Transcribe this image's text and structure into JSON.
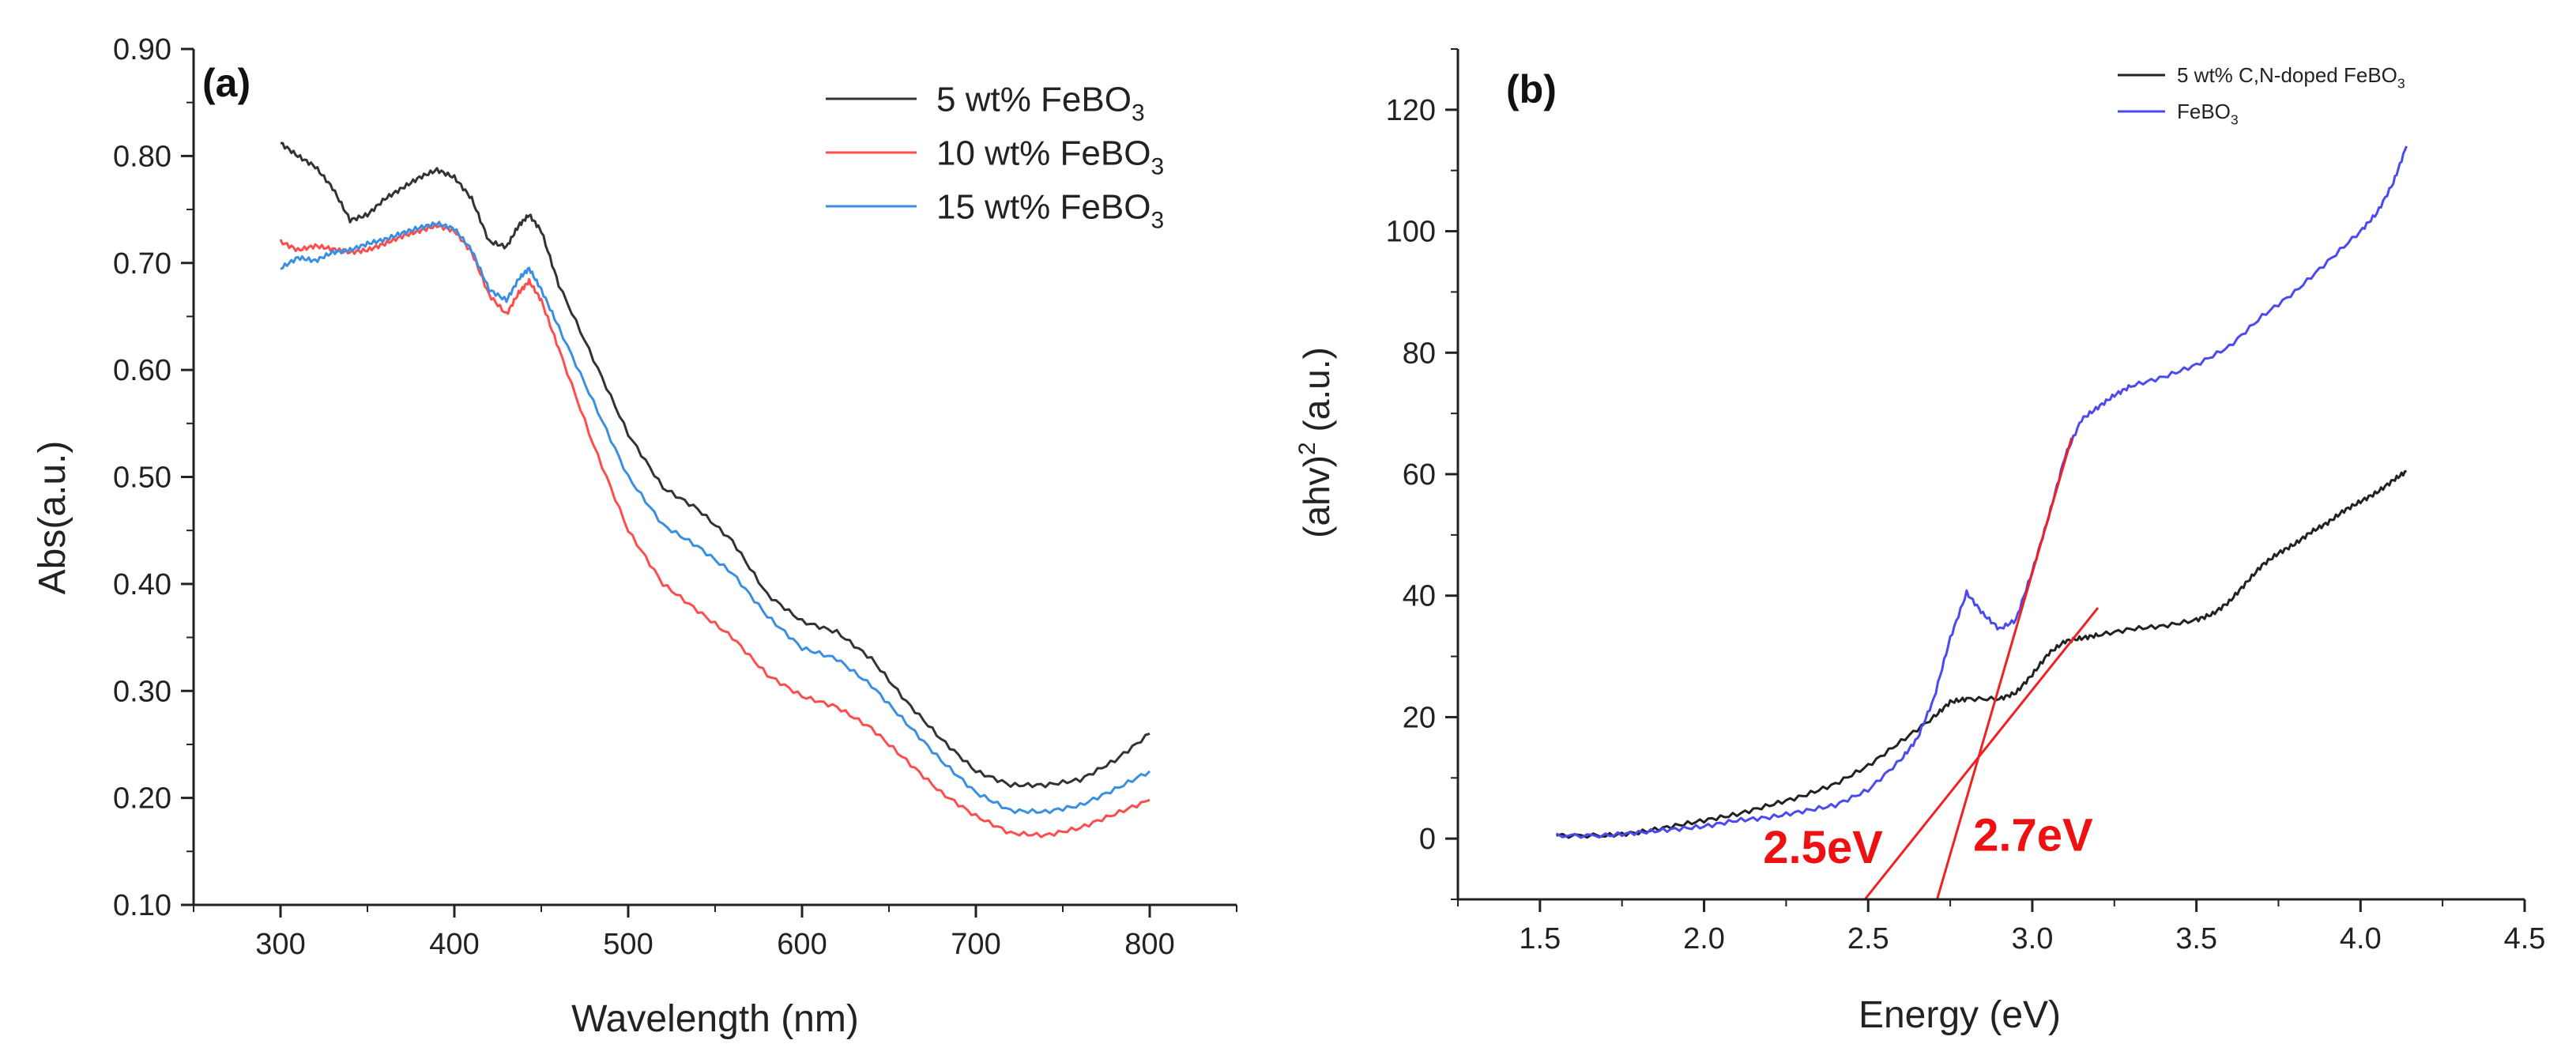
{
  "chart_data": [
    {
      "id": "a",
      "type": "line",
      "panel_label": "(a)",
      "xlabel": "Wavelength (nm)",
      "ylabel": "Abs(a.u.)",
      "xlim": [
        250,
        850
      ],
      "ylim": [
        0.1,
        0.9
      ],
      "xticks": [
        300,
        400,
        500,
        600,
        700,
        800
      ],
      "yticks": [
        0.1,
        0.2,
        0.3,
        0.4,
        0.5,
        0.6,
        0.7,
        0.8,
        0.9
      ],
      "x_minor_step": 50,
      "y_minor_step": 0.05,
      "legend_position": "top-right",
      "series": [
        {
          "name_main": "5 wt% FeBO",
          "name_sub": "3",
          "color": "#333333",
          "points": [
            [
              300,
              0.812
            ],
            [
              310,
              0.8
            ],
            [
              320,
              0.79
            ],
            [
              330,
              0.77
            ],
            [
              340,
              0.74
            ],
            [
              350,
              0.745
            ],
            [
              360,
              0.76
            ],
            [
              370,
              0.77
            ],
            [
              380,
              0.78
            ],
            [
              390,
              0.787
            ],
            [
              400,
              0.78
            ],
            [
              410,
              0.76
            ],
            [
              420,
              0.72
            ],
            [
              430,
              0.715
            ],
            [
              437,
              0.735
            ],
            [
              443,
              0.745
            ],
            [
              450,
              0.73
            ],
            [
              460,
              0.68
            ],
            [
              480,
              0.61
            ],
            [
              500,
              0.54
            ],
            [
              520,
              0.49
            ],
            [
              540,
              0.47
            ],
            [
              560,
              0.44
            ],
            [
              580,
              0.39
            ],
            [
              600,
              0.365
            ],
            [
              620,
              0.355
            ],
            [
              640,
              0.33
            ],
            [
              660,
              0.29
            ],
            [
              680,
              0.255
            ],
            [
              700,
              0.225
            ],
            [
              720,
              0.212
            ],
            [
              740,
              0.212
            ],
            [
              760,
              0.217
            ],
            [
              780,
              0.235
            ],
            [
              800,
              0.26
            ]
          ]
        },
        {
          "name_main": "10 wt% FeBO",
          "name_sub": "3",
          "color": "#ff4d4d",
          "points": [
            [
              300,
              0.72
            ],
            [
              310,
              0.712
            ],
            [
              320,
              0.716
            ],
            [
              330,
              0.713
            ],
            [
              340,
              0.71
            ],
            [
              350,
              0.712
            ],
            [
              360,
              0.718
            ],
            [
              370,
              0.725
            ],
            [
              380,
              0.73
            ],
            [
              390,
              0.735
            ],
            [
              400,
              0.73
            ],
            [
              410,
              0.71
            ],
            [
              420,
              0.67
            ],
            [
              430,
              0.652
            ],
            [
              437,
              0.672
            ],
            [
              443,
              0.683
            ],
            [
              450,
              0.665
            ],
            [
              460,
              0.62
            ],
            [
              480,
              0.53
            ],
            [
              500,
              0.45
            ],
            [
              520,
              0.4
            ],
            [
              540,
              0.375
            ],
            [
              560,
              0.35
            ],
            [
              580,
              0.315
            ],
            [
              600,
              0.295
            ],
            [
              620,
              0.285
            ],
            [
              640,
              0.265
            ],
            [
              660,
              0.235
            ],
            [
              680,
              0.205
            ],
            [
              700,
              0.183
            ],
            [
              720,
              0.167
            ],
            [
              740,
              0.165
            ],
            [
              760,
              0.172
            ],
            [
              780,
              0.185
            ],
            [
              800,
              0.198
            ]
          ]
        },
        {
          "name_main": "15 wt% FeBO",
          "name_sub": "3",
          "color": "#3a8fe0",
          "points": [
            [
              300,
              0.695
            ],
            [
              310,
              0.705
            ],
            [
              320,
              0.702
            ],
            [
              330,
              0.71
            ],
            [
              340,
              0.712
            ],
            [
              350,
              0.718
            ],
            [
              360,
              0.722
            ],
            [
              370,
              0.728
            ],
            [
              380,
              0.733
            ],
            [
              390,
              0.737
            ],
            [
              400,
              0.732
            ],
            [
              410,
              0.712
            ],
            [
              420,
              0.675
            ],
            [
              430,
              0.665
            ],
            [
              437,
              0.685
            ],
            [
              443,
              0.695
            ],
            [
              450,
              0.675
            ],
            [
              460,
              0.64
            ],
            [
              480,
              0.57
            ],
            [
              500,
              0.5
            ],
            [
              520,
              0.455
            ],
            [
              540,
              0.435
            ],
            [
              560,
              0.41
            ],
            [
              580,
              0.37
            ],
            [
              600,
              0.34
            ],
            [
              620,
              0.33
            ],
            [
              640,
              0.305
            ],
            [
              660,
              0.27
            ],
            [
              680,
              0.235
            ],
            [
              700,
              0.205
            ],
            [
              720,
              0.188
            ],
            [
              740,
              0.187
            ],
            [
              760,
              0.193
            ],
            [
              780,
              0.208
            ],
            [
              800,
              0.225
            ]
          ]
        }
      ]
    },
    {
      "id": "b",
      "type": "line",
      "panel_label": "(b)",
      "xlabel": "Energy (eV)",
      "ylabel_main": "(ahv)",
      "ylabel_sup": "2",
      "ylabel_tail": " (a.u.)",
      "xlim": [
        1.25,
        4.5
      ],
      "ylim": [
        -10,
        130
      ],
      "xticks": [
        1.5,
        2.0,
        2.5,
        3.0,
        3.5,
        4.0,
        4.5
      ],
      "yticks": [
        0,
        20,
        40,
        60,
        80,
        100,
        120
      ],
      "x_minor_step": 0.25,
      "y_minor_step": 10,
      "legend_position": "top-right",
      "series": [
        {
          "name_main": "5 wt% C,N-doped FeBO",
          "name_sub": "3",
          "color": "#222222",
          "points": [
            [
              1.55,
              0.5
            ],
            [
              1.7,
              0.5
            ],
            [
              1.8,
              1.0
            ],
            [
              1.9,
              2.0
            ],
            [
              2.0,
              3.0
            ],
            [
              2.1,
              4.0
            ],
            [
              2.2,
              5.5
            ],
            [
              2.3,
              7.0
            ],
            [
              2.4,
              9.0
            ],
            [
              2.5,
              12.0
            ],
            [
              2.6,
              16.0
            ],
            [
              2.7,
              20.0
            ],
            [
              2.75,
              22.5
            ],
            [
              2.8,
              23.0
            ],
            [
              2.9,
              23.0
            ],
            [
              2.95,
              24.0
            ],
            [
              3.0,
              27.0
            ],
            [
              3.05,
              30.5
            ],
            [
              3.1,
              32.5
            ],
            [
              3.15,
              33.0
            ],
            [
              3.2,
              33.5
            ],
            [
              3.3,
              34.5
            ],
            [
              3.4,
              35.0
            ],
            [
              3.5,
              36.0
            ],
            [
              3.55,
              37.0
            ],
            [
              3.6,
              39.0
            ],
            [
              3.65,
              42.0
            ],
            [
              3.7,
              45.0
            ],
            [
              3.75,
              47.0
            ],
            [
              3.8,
              48.5
            ],
            [
              3.85,
              50.5
            ],
            [
              3.9,
              52.0
            ],
            [
              3.95,
              54.0
            ],
            [
              4.0,
              55.5
            ],
            [
              4.05,
              57.0
            ],
            [
              4.1,
              59.0
            ],
            [
              4.14,
              60.5
            ]
          ]
        },
        {
          "name_main": "FeBO",
          "name_sub": "3",
          "color": "#4a4af0",
          "points": [
            [
              1.55,
              0.5
            ],
            [
              1.7,
              0.5
            ],
            [
              1.8,
              1.0
            ],
            [
              1.9,
              1.5
            ],
            [
              2.0,
              2.0
            ],
            [
              2.1,
              3.0
            ],
            [
              2.2,
              3.5
            ],
            [
              2.3,
              4.5
            ],
            [
              2.4,
              5.5
            ],
            [
              2.5,
              8.0
            ],
            [
              2.6,
              13.0
            ],
            [
              2.65,
              16.5
            ],
            [
              2.7,
              23.0
            ],
            [
              2.75,
              33.0
            ],
            [
              2.8,
              40.5
            ],
            [
              2.85,
              37.0
            ],
            [
              2.9,
              34.5
            ],
            [
              2.95,
              36.0
            ],
            [
              3.0,
              44.0
            ],
            [
              3.05,
              53.0
            ],
            [
              3.1,
              63.0
            ],
            [
              3.15,
              69.0
            ],
            [
              3.2,
              71.0
            ],
            [
              3.25,
              73.0
            ],
            [
              3.3,
              74.5
            ],
            [
              3.4,
              76.0
            ],
            [
              3.5,
              78.0
            ],
            [
              3.6,
              81.0
            ],
            [
              3.7,
              86.0
            ],
            [
              3.8,
              90.0
            ],
            [
              3.9,
              95.0
            ],
            [
              4.0,
              100.0
            ],
            [
              4.05,
              103.0
            ],
            [
              4.1,
              108.0
            ],
            [
              4.14,
              114.0
            ]
          ]
        }
      ],
      "fit_lines": [
        {
          "color": "#ee2222",
          "points": [
            [
              2.49,
              -10
            ],
            [
              3.2,
              38
            ]
          ]
        },
        {
          "color": "#ee2222",
          "points": [
            [
              2.71,
              -10
            ],
            [
              3.12,
              66
            ]
          ]
        }
      ],
      "annotations": [
        {
          "text": "2.5eV",
          "x": 2.18,
          "y": -4,
          "color": "#ee1111"
        },
        {
          "text": "2.7eV",
          "x": 2.82,
          "y": -2,
          "color": "#ee1111"
        }
      ]
    }
  ]
}
